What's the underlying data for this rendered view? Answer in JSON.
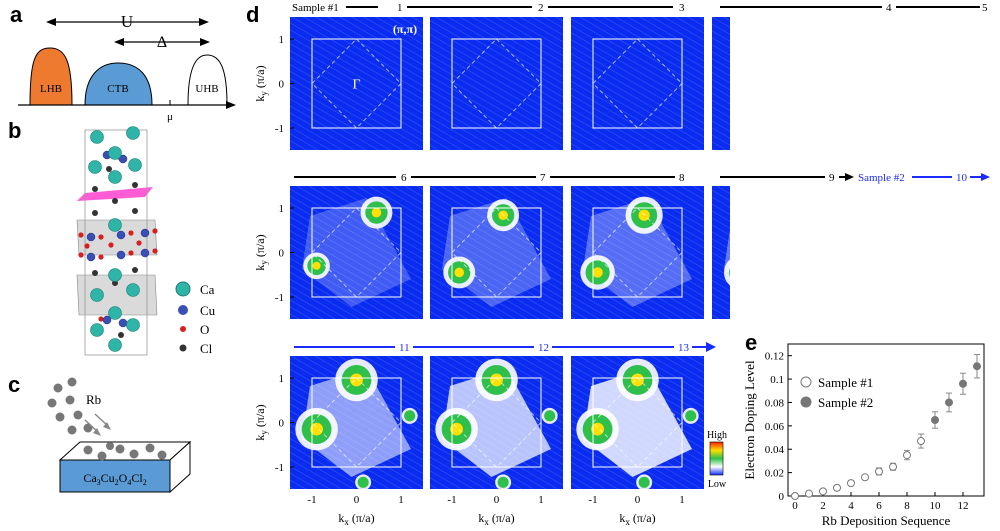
{
  "panel_labels": {
    "a": "a",
    "b": "b",
    "c": "c",
    "d": "d",
    "e": "e"
  },
  "panel_a": {
    "U_label": "U",
    "Delta_label": "Δ",
    "mu_label": "μ",
    "bands": [
      {
        "name": "LHB",
        "color": "#ee7a30"
      },
      {
        "name": "CTB",
        "color": "#5b9bd5"
      },
      {
        "name": "UHB",
        "color": "#ffffff"
      }
    ]
  },
  "panel_b": {
    "legend": [
      {
        "element": "Ca",
        "color": "#2fb5a8"
      },
      {
        "element": "Cu",
        "color": "#3a4fb5"
      },
      {
        "element": "O",
        "color": "#d62020"
      },
      {
        "element": "Cl",
        "color": "#333333"
      }
    ]
  },
  "panel_c": {
    "dopant_label": "Rb",
    "substrate_label_parts": [
      "Ca",
      "3",
      "Cu",
      "2",
      "O",
      "4",
      "Cl",
      "2"
    ]
  },
  "panel_d": {
    "gamma_label": "Γ",
    "pipi_label": "(π,π)",
    "ylabel": "k",
    "ylabel_sub": "y",
    "ylabel_unit": " (π/a)",
    "xlabel": "k",
    "xlabel_sub": "x",
    "xlabel_unit": " (π/a)",
    "yticks": [
      "1",
      "0",
      "-1"
    ],
    "xticks": [
      "-1",
      "0",
      "1"
    ],
    "row1_seq": [
      "Sample #1",
      "1",
      "2",
      "3",
      "4",
      "5"
    ],
    "row2_seq": [
      "6",
      "7",
      "8",
      "9",
      "Sample #2",
      "10"
    ],
    "row3_seq": [
      "11",
      "12",
      "13"
    ],
    "colorbar_high": "High",
    "colorbar_low": "Low"
  },
  "chart_data": {
    "type": "scatter",
    "xlabel": "Rb Deposition Sequence",
    "ylabel": "Electron Doping Level",
    "xlim": [
      -0.5,
      13.5
    ],
    "ylim": [
      0,
      0.13
    ],
    "xticks": [
      0,
      2,
      4,
      6,
      8,
      10,
      12
    ],
    "yticks": [
      0,
      0.02,
      0.04,
      0.06,
      0.08,
      0.1,
      0.12
    ],
    "ytick_labels": [
      "0",
      "0.02",
      "0.04",
      "0.06",
      "0.08",
      "0.1",
      "0.12"
    ],
    "legend_position": "upper-left",
    "series": [
      {
        "name": "Sample #1",
        "marker": "open-circle",
        "x": [
          0,
          1,
          2,
          3,
          4,
          5,
          6,
          7,
          8,
          9
        ],
        "y": [
          0.0,
          0.002,
          0.004,
          0.007,
          0.011,
          0.016,
          0.021,
          0.025,
          0.035,
          0.047
        ],
        "err": [
          0.002,
          0.002,
          0.002,
          0.002,
          0.002,
          0.002,
          0.003,
          0.003,
          0.004,
          0.006
        ]
      },
      {
        "name": "Sample #2",
        "marker": "filled-circle",
        "x": [
          10,
          11,
          12,
          13
        ],
        "y": [
          0.065,
          0.08,
          0.096,
          0.111
        ],
        "err": [
          0.007,
          0.008,
          0.009,
          0.01
        ]
      }
    ]
  }
}
